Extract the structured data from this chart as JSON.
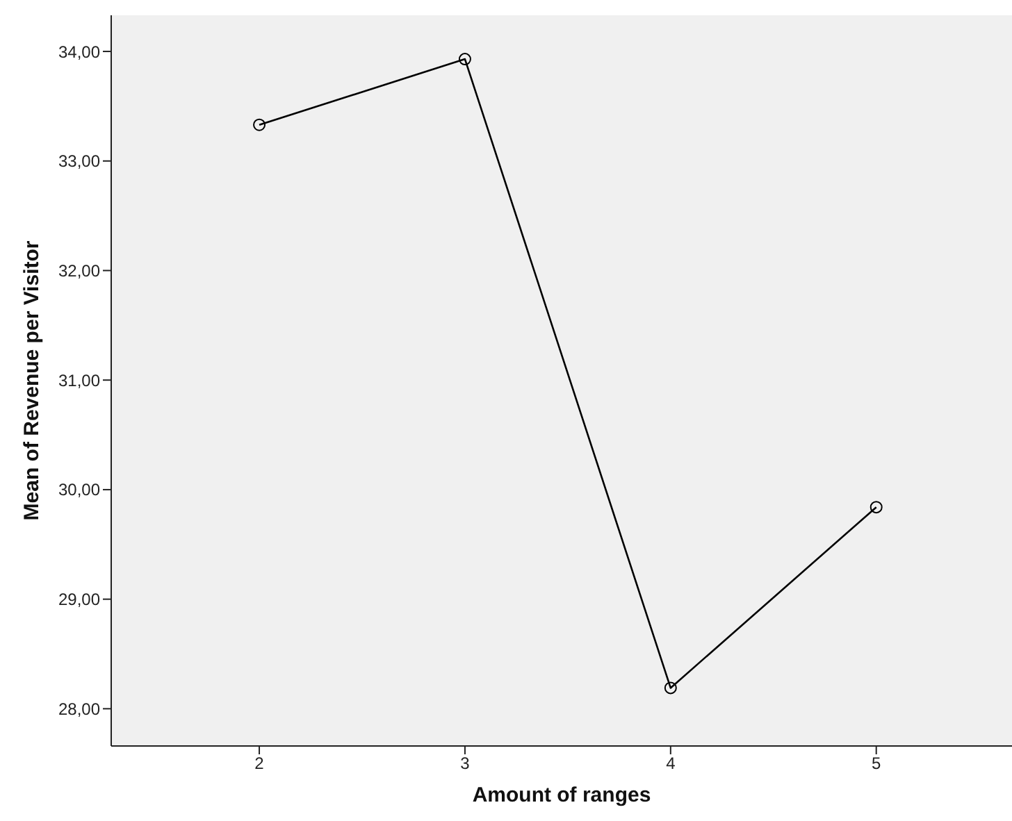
{
  "chart_data": {
    "type": "line",
    "xlabel": "Amount of ranges",
    "ylabel": "Mean of Revenue per Visitor",
    "x": [
      2,
      3,
      4,
      5
    ],
    "xlim": [
      1.28,
      5.66
    ],
    "xticks": [
      2,
      3,
      4,
      5
    ],
    "ylim": [
      27.66,
      34.33
    ],
    "yticks": [
      {
        "value": 28,
        "label": "28,00"
      },
      {
        "value": 29,
        "label": "29,00"
      },
      {
        "value": 30,
        "label": "30,00"
      },
      {
        "value": 31,
        "label": "31,00"
      },
      {
        "value": 32,
        "label": "32,00"
      },
      {
        "value": 33,
        "label": "33,00"
      },
      {
        "value": 34,
        "label": "34,00"
      }
    ],
    "series": [
      {
        "color": "#000000",
        "values": [
          33.33,
          33.93,
          28.19,
          29.84
        ]
      }
    ],
    "marker": "circle",
    "line_style": "solid",
    "legend": false
  }
}
